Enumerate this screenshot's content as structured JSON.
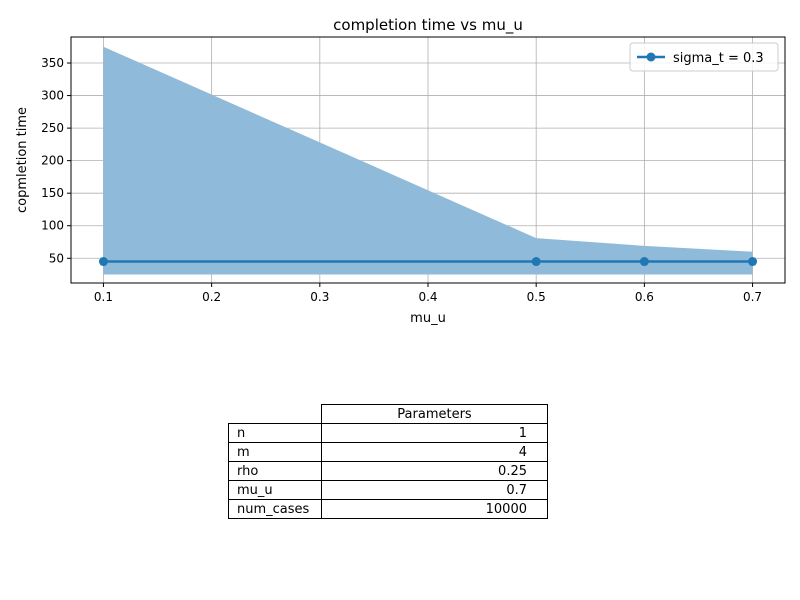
{
  "chart_data": {
    "type": "line",
    "title": "completion time vs mu_u",
    "xlabel": "mu_u",
    "ylabel": "copmletion time",
    "xlim": [
      0.07,
      0.73
    ],
    "ylim": [
      12,
      390
    ],
    "xticks": [
      0.1,
      0.2,
      0.3,
      0.4,
      0.5,
      0.6,
      0.7
    ],
    "xtick_labels": [
      "0.1",
      "0.2",
      "0.3",
      "0.4",
      "0.5",
      "0.6",
      "0.7"
    ],
    "yticks": [
      50,
      100,
      150,
      200,
      250,
      300,
      350
    ],
    "ytick_labels": [
      "50",
      "100",
      "150",
      "200",
      "250",
      "300",
      "350"
    ],
    "grid": true,
    "legend_position": "top-right",
    "series": [
      {
        "name": "sigma_t = 0.3",
        "color": "#1f77b4",
        "x": [
          0.1,
          0.5,
          0.6,
          0.7
        ],
        "y": [
          45,
          45,
          45,
          45
        ],
        "band_upper": [
          375,
          81,
          69,
          60
        ],
        "band_lower": [
          25,
          25,
          25,
          25
        ],
        "band_color": "#8fbad9"
      }
    ]
  },
  "table": {
    "header": "Parameters",
    "rows": [
      {
        "label": "n",
        "value": "1"
      },
      {
        "label": "m",
        "value": "4"
      },
      {
        "label": "rho",
        "value": "0.25"
      },
      {
        "label": "mu_u",
        "value": "0.7"
      },
      {
        "label": "num_cases",
        "value": "10000"
      }
    ]
  }
}
